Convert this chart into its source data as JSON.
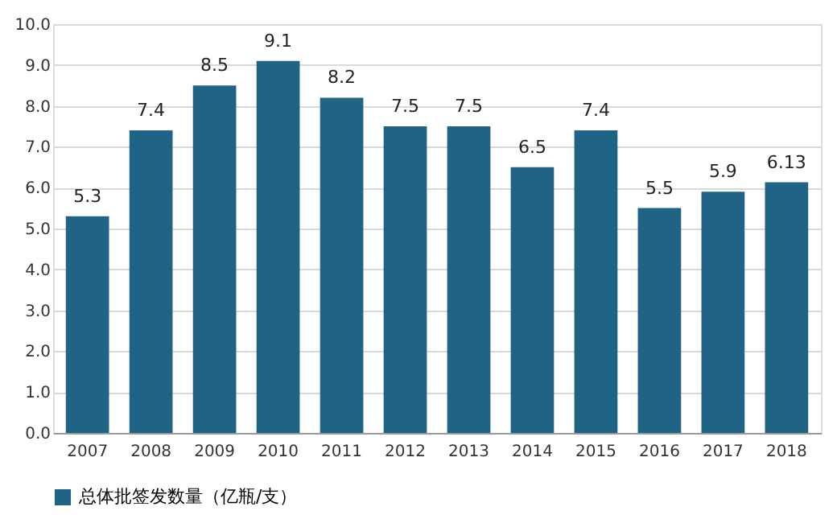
{
  "chart_data": {
    "type": "bar",
    "categories": [
      "2007",
      "2008",
      "2009",
      "2010",
      "2011",
      "2012",
      "2013",
      "2014",
      "2015",
      "2016",
      "2017",
      "2018"
    ],
    "series": [
      {
        "name": "总体批签发数量（亿瓶/支）",
        "color": "#1f6385",
        "values": [
          5.3,
          7.4,
          8.5,
          9.1,
          8.2,
          7.5,
          7.5,
          6.5,
          7.4,
          5.5,
          5.9,
          6.13
        ]
      }
    ],
    "ylim": [
      0,
      10
    ],
    "yticks": [
      {
        "value": 0,
        "label": "0.0"
      },
      {
        "value": 1,
        "label": "1.0"
      },
      {
        "value": 2,
        "label": "2.0"
      },
      {
        "value": 3,
        "label": "3.0"
      },
      {
        "value": 4,
        "label": "4.0"
      },
      {
        "value": 5,
        "label": "5.0"
      },
      {
        "value": 6,
        "label": "6.0"
      },
      {
        "value": 7,
        "label": "7.0"
      },
      {
        "value": 8,
        "label": "8.0"
      },
      {
        "value": 9,
        "label": "9.0"
      },
      {
        "value": 10,
        "label": "10.0"
      }
    ],
    "grid": "y",
    "legend": "bottom",
    "data_labels": true
  }
}
